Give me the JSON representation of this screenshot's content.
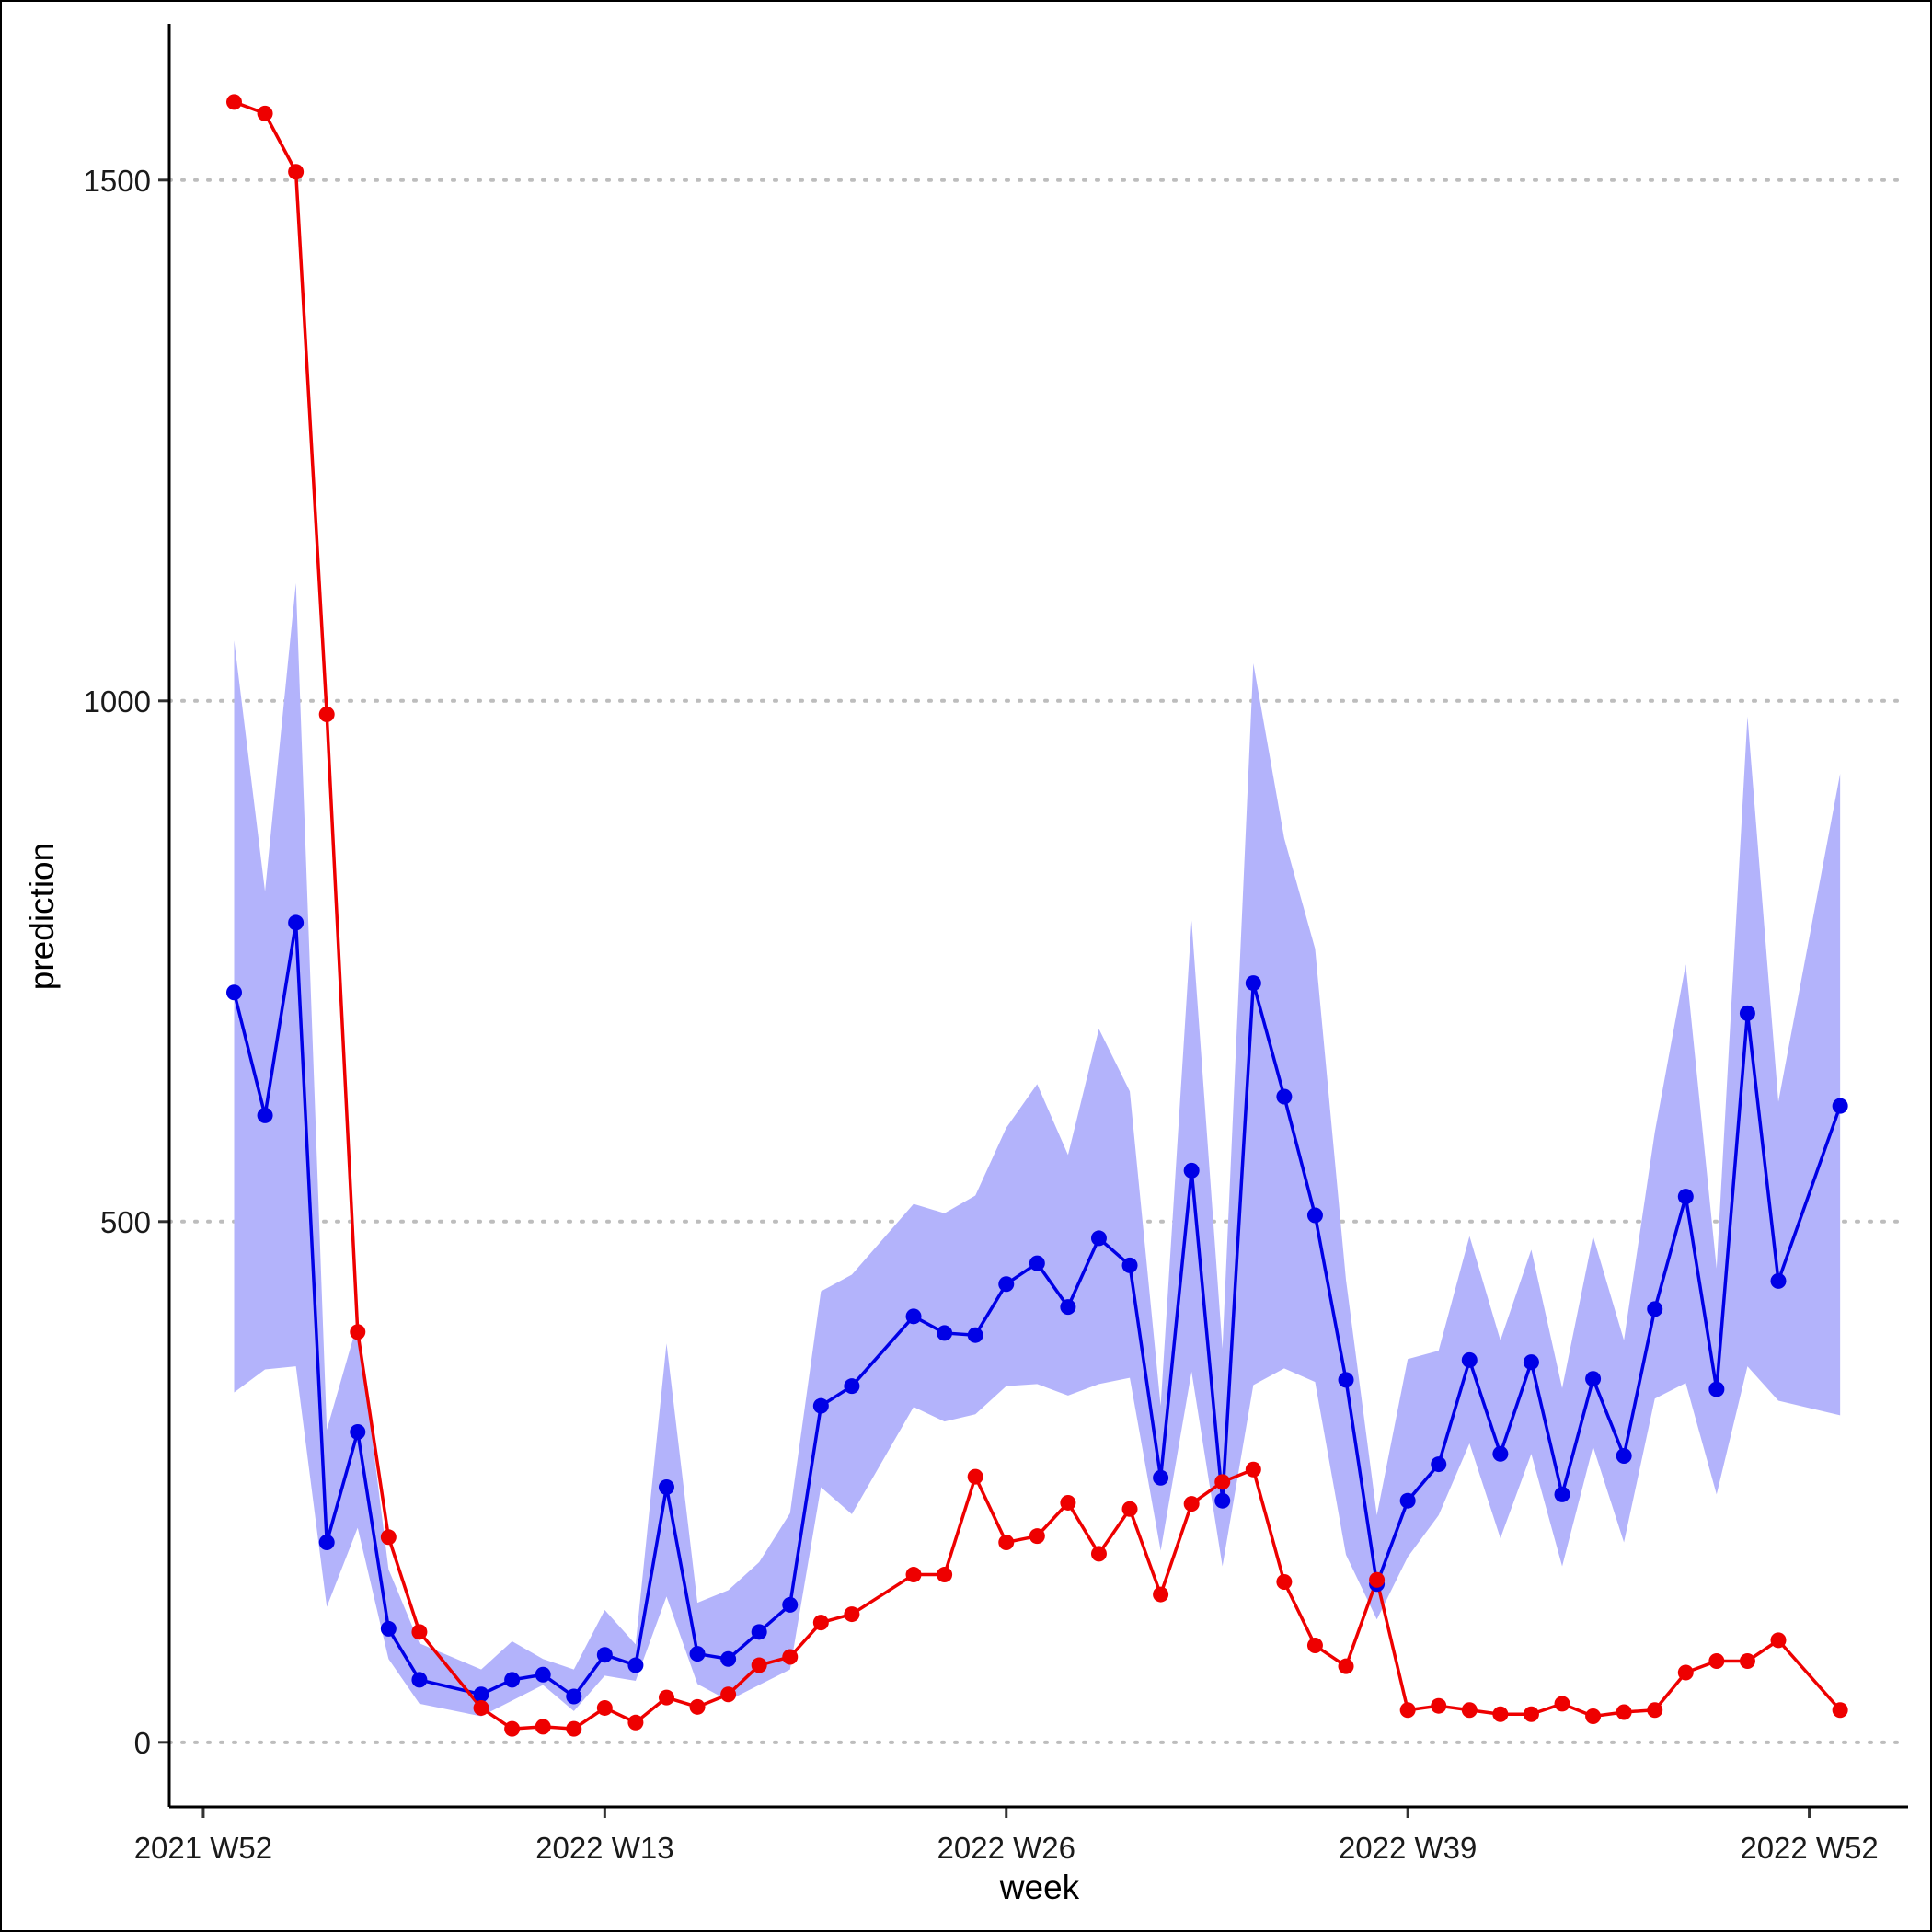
{
  "chart_data": {
    "type": "line",
    "xlabel": "week",
    "ylabel": "prediction",
    "x_tick_labels": [
      "2021 W52",
      "2022 W13",
      "2022 W26",
      "2022 W39",
      "2022 W52"
    ],
    "x_tick_weeks": [
      0,
      13,
      26,
      39,
      52
    ],
    "x_weeks": [
      1,
      2,
      3,
      4,
      5,
      6,
      7,
      9,
      10,
      11,
      12,
      13,
      14,
      15,
      16,
      17,
      18,
      19,
      20,
      21,
      23,
      24,
      25,
      26,
      27,
      28,
      29,
      30,
      31,
      32,
      33,
      34,
      35,
      36,
      37,
      38,
      39,
      40,
      41,
      42,
      43,
      44,
      45,
      46,
      47,
      48,
      49,
      50,
      51,
      53
    ],
    "y_ticks": [
      0,
      500,
      1000,
      1500
    ],
    "xlim": [
      -1.1,
      55.2
    ],
    "ylim": [
      -62,
      1650
    ],
    "grid": "horizontal dotted",
    "series": [
      {
        "color": "#0000e6",
        "values": [
          720,
          602,
          787,
          192,
          298,
          109,
          60,
          46,
          60,
          65,
          44,
          84,
          74,
          245,
          85,
          80,
          106,
          132,
          323,
          342,
          409,
          393,
          391,
          440,
          460,
          418,
          484,
          458,
          254,
          549,
          232,
          729,
          620,
          506,
          348,
          152,
          232,
          267,
          367,
          277,
          365,
          238,
          349,
          275,
          416,
          524,
          339,
          700,
          443,
          611
        ],
        "band_upper": [
          1058,
          817,
          1113,
          300,
          403,
          166,
          95,
          70,
          97,
          80,
          70,
          127,
          94,
          383,
          134,
          146,
          173,
          220,
          433,
          449,
          517,
          508,
          525,
          590,
          632,
          564,
          685,
          625,
          323,
          789,
          378,
          1036,
          868,
          762,
          444,
          218,
          368,
          376,
          486,
          386,
          473,
          340,
          486,
          386,
          586,
          747,
          455,
          985,
          615,
          930
        ],
        "band_lower": [
          336,
          358,
          361,
          130,
          206,
          80,
          37,
          25,
          40,
          55,
          30,
          64,
          59,
          140,
          56,
          40,
          55,
          70,
          245,
          219,
          322,
          308,
          315,
          342,
          344,
          333,
          344,
          350,
          184,
          356,
          169,
          343,
          359,
          346,
          180,
          118,
          178,
          218,
          287,
          196,
          277,
          169,
          284,
          192,
          330,
          345,
          238,
          361,
          328,
          314
        ]
      },
      {
        "color": "#ee0000",
        "values": [
          1575,
          1564,
          1508,
          987,
          394,
          197,
          106,
          33,
          13,
          15,
          13,
          33,
          19,
          43,
          34,
          46,
          74,
          82,
          115,
          123,
          161,
          161,
          255,
          192,
          198,
          230,
          181,
          224,
          142,
          229,
          250,
          262,
          154,
          93,
          73,
          156,
          31,
          35,
          31,
          27,
          27,
          37,
          25,
          29,
          31,
          67,
          78,
          78,
          98,
          31
        ]
      }
    ]
  }
}
